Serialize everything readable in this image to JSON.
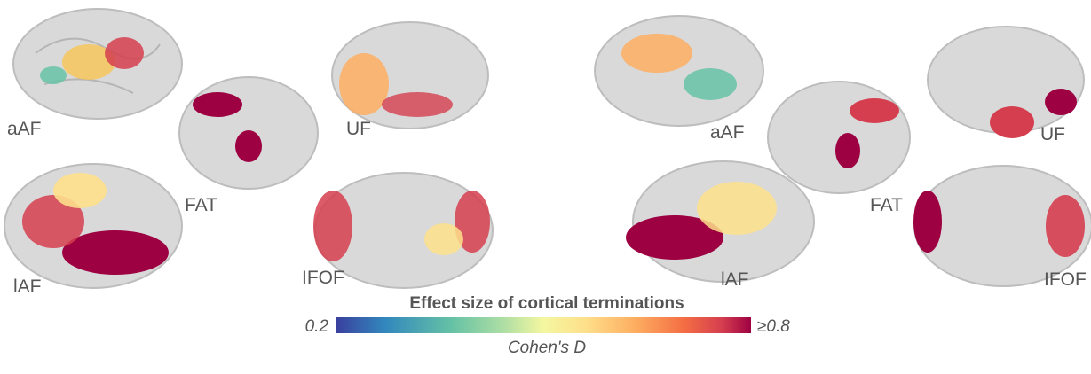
{
  "panels": [
    {
      "labels": [
        "aAF",
        "FAT",
        "UF",
        "lAF",
        "IFOF"
      ]
    },
    {
      "labels": [
        "aAF",
        "FAT",
        "UF",
        "lAF",
        "IFOF"
      ]
    }
  ],
  "colorbar": {
    "title": "Effect size of cortical terminations",
    "min_label": "0.2",
    "max_label": "≥0.8",
    "axis_label": "Cohen's D"
  }
}
